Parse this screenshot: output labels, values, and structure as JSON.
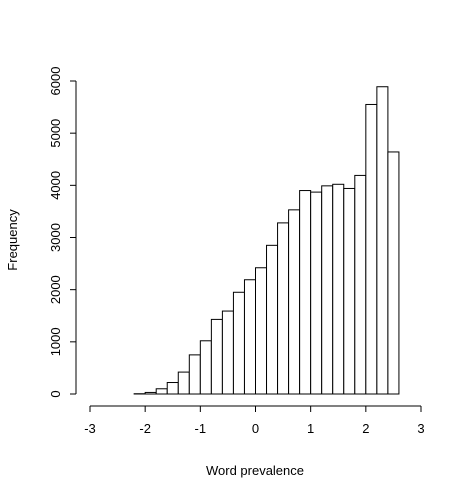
{
  "chart_data": {
    "type": "bar",
    "title": "",
    "xlabel": "Word prevalence",
    "ylabel": "Frequency",
    "bin_width": 0.2,
    "bins_start": [
      -2.2,
      -2.0,
      -1.8,
      -1.6,
      -1.4,
      -1.2,
      -1.0,
      -0.8,
      -0.6,
      -0.4,
      -0.2,
      0.0,
      0.2,
      0.4,
      0.6,
      0.8,
      1.0,
      1.2,
      1.4,
      1.6,
      1.8,
      2.0,
      2.2,
      2.4
    ],
    "values": [
      5,
      30,
      100,
      220,
      420,
      750,
      1020,
      1430,
      1590,
      1950,
      2190,
      2420,
      2850,
      3280,
      3530,
      3900,
      3870,
      3990,
      4020,
      3940,
      4190,
      5550,
      5890,
      4640
    ],
    "xlim": [
      -3,
      3
    ],
    "ylim": [
      0,
      6000
    ],
    "x_ticks": [
      -3,
      -2,
      -1,
      0,
      1,
      2,
      3
    ],
    "y_ticks": [
      0,
      1000,
      2000,
      3000,
      4000,
      5000,
      6000
    ],
    "grid": false,
    "legend": "none"
  }
}
